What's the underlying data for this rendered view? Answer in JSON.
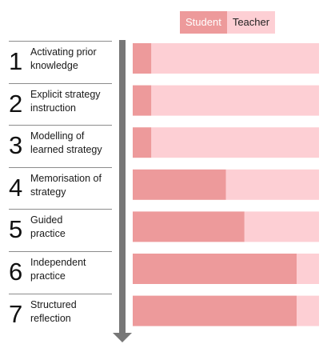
{
  "chart_data": {
    "type": "bar",
    "orientation": "horizontal",
    "stacked": true,
    "series": [
      {
        "name": "Student",
        "values": [
          10,
          10,
          10,
          50,
          60,
          88,
          88
        ]
      },
      {
        "name": "Teacher",
        "values": [
          90,
          90,
          90,
          50,
          40,
          12,
          12
        ]
      }
    ],
    "categories": [
      "Activating prior knowledge",
      "Explicit strategy instruction",
      "Modelling of learned strategy",
      "Memorisation of strategy",
      "Guided practice",
      "Independent practice",
      "Structured reflection"
    ],
    "xlim": [
      0,
      100
    ],
    "legend": "top",
    "grid": false
  },
  "steps": [
    {
      "number": "1",
      "label": "Activating prior\nknowledge"
    },
    {
      "number": "2",
      "label": "Explicit strategy\ninstruction"
    },
    {
      "number": "3",
      "label": "Modelling of\nlearned strategy"
    },
    {
      "number": "4",
      "label": "Memorisation of\nstrategy"
    },
    {
      "number": "5",
      "label": "Guided\npractice"
    },
    {
      "number": "6",
      "label": "Independent\npractice"
    },
    {
      "number": "7",
      "label": "Structured\nreflection"
    }
  ],
  "legend_labels": {
    "student": "Student",
    "teacher": "Teacher"
  },
  "colors": {
    "student": "#ed9a9b",
    "teacher": "#fdcfd4",
    "arrow": "#777777",
    "divider": "#8c8c8c"
  }
}
